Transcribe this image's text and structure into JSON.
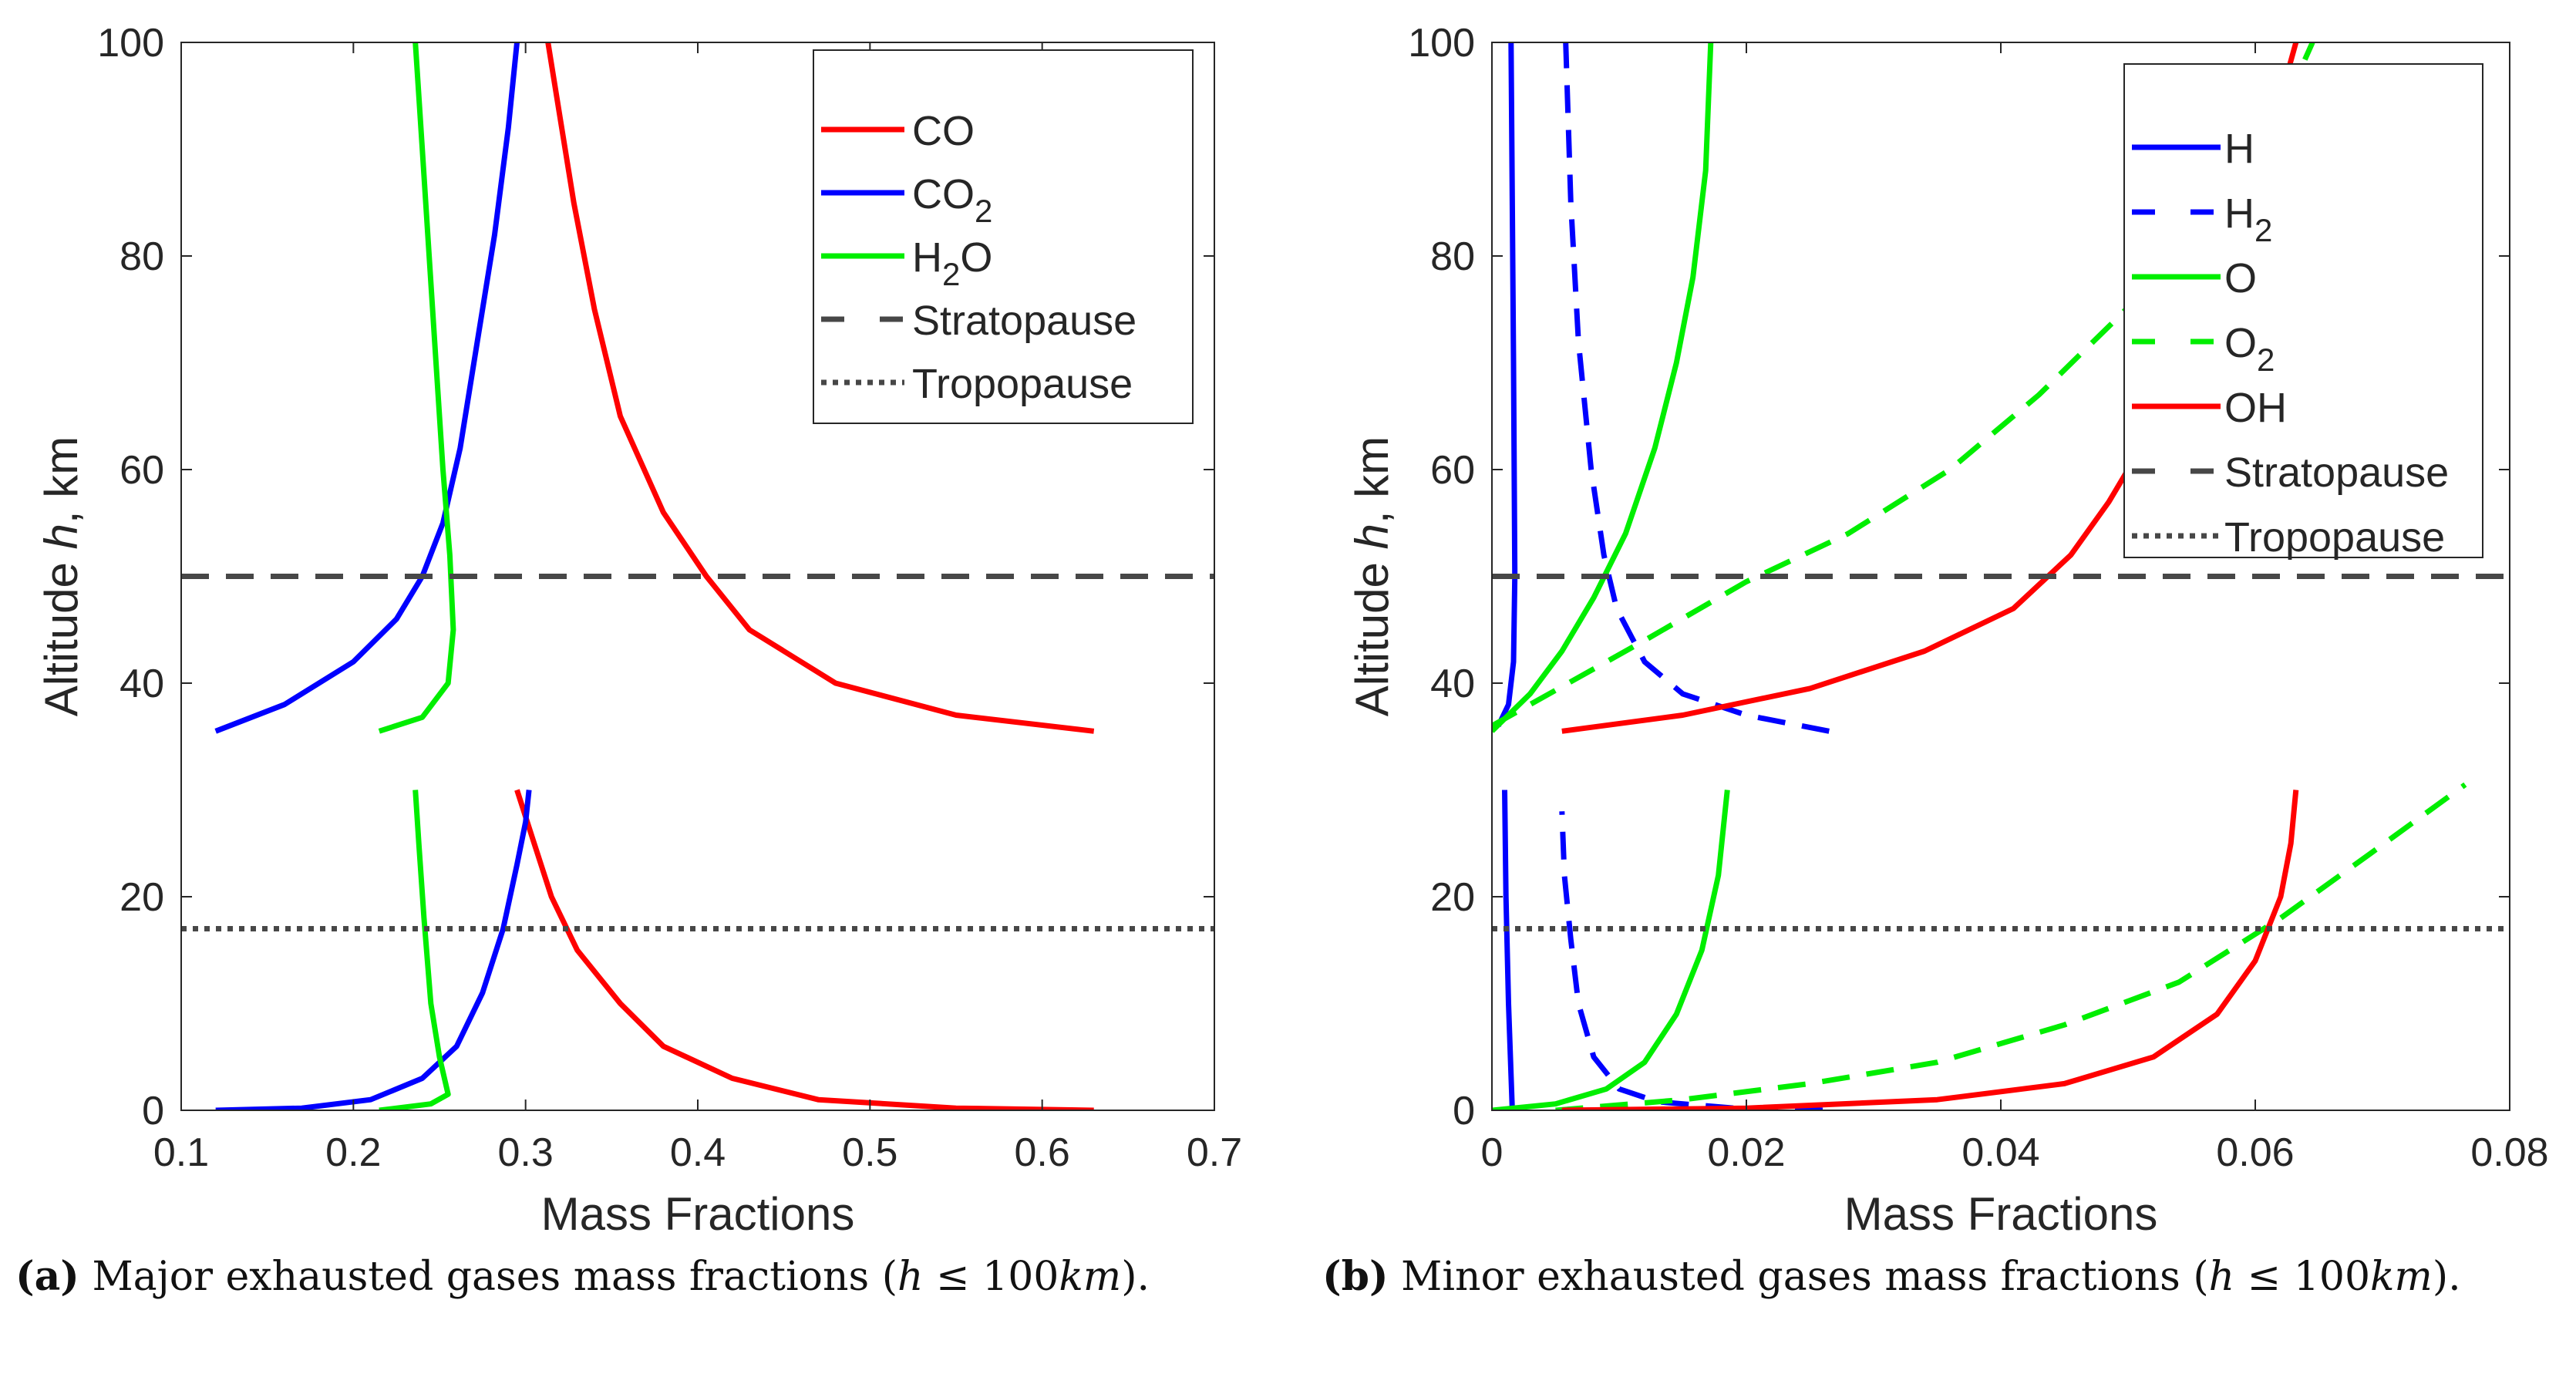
{
  "chart_data": [
    {
      "type": "line",
      "title": "",
      "xlabel": "Mass Fractions",
      "ylabel": "Altitude  h, km",
      "ylabel_italic": "h",
      "xlim": [
        0.1,
        0.7
      ],
      "ylim": [
        0,
        100
      ],
      "xticks": [
        0.1,
        0.2,
        0.3,
        0.4,
        0.5,
        0.6,
        0.7
      ],
      "xtick_labels": [
        "0.1",
        "0.2",
        "0.3",
        "0.4",
        "0.5",
        "0.6",
        "0.7"
      ],
      "yticks": [
        0,
        20,
        40,
        60,
        80,
        100
      ],
      "ytick_labels": [
        "0",
        "20",
        "40",
        "60",
        "80",
        "100"
      ],
      "legend_position": "top-right",
      "grid": false,
      "series": [
        {
          "name": "CO",
          "label_main": "CO",
          "label_sub": "",
          "label_tail": "",
          "color": "#ff0000",
          "dash": "solid",
          "segments": [
            [
              [
                0.63,
                35.5
              ],
              [
                0.55,
                37
              ],
              [
                0.48,
                40
              ],
              [
                0.43,
                45
              ],
              [
                0.405,
                50
              ],
              [
                0.38,
                56
              ],
              [
                0.355,
                65
              ],
              [
                0.34,
                75
              ],
              [
                0.328,
                85
              ],
              [
                0.32,
                93
              ],
              [
                0.313,
                100
              ]
            ],
            [
              [
                0.295,
                30
              ],
              [
                0.305,
                25
              ],
              [
                0.315,
                20
              ],
              [
                0.33,
                15
              ],
              [
                0.355,
                10
              ],
              [
                0.38,
                6
              ],
              [
                0.42,
                3
              ],
              [
                0.47,
                1
              ],
              [
                0.55,
                0.2
              ],
              [
                0.63,
                0
              ]
            ]
          ]
        },
        {
          "name": "CO2",
          "label_main": "CO",
          "label_sub": "2",
          "label_tail": "",
          "color": "#0000ff",
          "dash": "solid",
          "segments": [
            [
              [
                0.12,
                35.5
              ],
              [
                0.16,
                38
              ],
              [
                0.2,
                42
              ],
              [
                0.225,
                46
              ],
              [
                0.24,
                50
              ],
              [
                0.252,
                55
              ],
              [
                0.262,
                62
              ],
              [
                0.272,
                72
              ],
              [
                0.282,
                82
              ],
              [
                0.29,
                92
              ],
              [
                0.295,
                100
              ]
            ],
            [
              [
                0.12,
                0
              ],
              [
                0.17,
                0.2
              ],
              [
                0.21,
                1
              ],
              [
                0.24,
                3
              ],
              [
                0.26,
                6
              ],
              [
                0.275,
                11
              ],
              [
                0.287,
                17
              ],
              [
                0.295,
                23
              ],
              [
                0.3,
                27
              ],
              [
                0.302,
                30
              ]
            ]
          ]
        },
        {
          "name": "H2O",
          "label_main": "H",
          "label_sub": "2",
          "label_tail": "O",
          "color": "#00ee00",
          "dash": "solid",
          "segments": [
            [
              [
                0.215,
                35.5
              ],
              [
                0.24,
                36.8
              ],
              [
                0.255,
                40
              ],
              [
                0.258,
                45
              ],
              [
                0.256,
                52
              ],
              [
                0.252,
                60
              ],
              [
                0.248,
                70
              ],
              [
                0.244,
                80
              ],
              [
                0.24,
                90
              ],
              [
                0.236,
                100
              ]
            ],
            [
              [
                0.215,
                0
              ],
              [
                0.245,
                0.6
              ],
              [
                0.255,
                1.5
              ],
              [
                0.25,
                5
              ],
              [
                0.245,
                10
              ],
              [
                0.241,
                18
              ],
              [
                0.238,
                25
              ],
              [
                0.236,
                30
              ]
            ]
          ]
        },
        {
          "name": "Stratopause",
          "label_main": "Stratopause",
          "label_sub": "",
          "label_tail": "",
          "color": "#474747",
          "dash": "dashed",
          "segments": [
            [
              [
                0.1,
                50
              ],
              [
                0.7,
                50
              ]
            ]
          ]
        },
        {
          "name": "Tropopause",
          "label_main": "Tropopause",
          "label_sub": "",
          "label_tail": "",
          "color": "#474747",
          "dash": "dotted",
          "segments": [
            [
              [
                0.1,
                17
              ],
              [
                0.7,
                17
              ]
            ]
          ]
        }
      ]
    },
    {
      "type": "line",
      "title": "",
      "xlabel": "Mass Fractions",
      "ylabel": "Altitude  h, km",
      "ylabel_italic": "h",
      "xlim": [
        0,
        0.08
      ],
      "ylim": [
        0,
        100
      ],
      "xticks": [
        0,
        0.02,
        0.04,
        0.06,
        0.08
      ],
      "xtick_labels": [
        "0",
        "0.02",
        "0.04",
        "0.06",
        "0.08"
      ],
      "yticks": [
        0,
        20,
        40,
        60,
        80,
        100
      ],
      "ytick_labels": [
        "0",
        "20",
        "40",
        "60",
        "80",
        "100"
      ],
      "legend_position": "top-right",
      "grid": false,
      "series": [
        {
          "name": "H",
          "label_main": "H",
          "label_sub": "",
          "label_tail": "",
          "color": "#0000ff",
          "dash": "solid",
          "segments": [
            [
              [
                0.0005,
                36
              ],
              [
                0.0013,
                38
              ],
              [
                0.0017,
                42
              ],
              [
                0.0018,
                50
              ],
              [
                0.0017,
                70
              ],
              [
                0.0015,
                100
              ]
            ],
            [
              [
                0.0016,
                0
              ],
              [
                0.0013,
                10
              ],
              [
                0.0011,
                20
              ],
              [
                0.001,
                30
              ]
            ]
          ]
        },
        {
          "name": "H2",
          "label_main": "H",
          "label_sub": "2",
          "label_tail": "",
          "color": "#0000ff",
          "dash": "dashed",
          "segments": [
            [
              [
                0.0265,
                35.5
              ],
              [
                0.02,
                37
              ],
              [
                0.015,
                39
              ],
              [
                0.012,
                42
              ],
              [
                0.0098,
                47
              ],
              [
                0.0088,
                52
              ],
              [
                0.0078,
                60
              ],
              [
                0.0068,
                72
              ],
              [
                0.0062,
                85
              ],
              [
                0.0058,
                100
              ]
            ],
            [
              [
                0.026,
                0
              ],
              [
                0.019,
                0.2
              ],
              [
                0.013,
                0.8
              ],
              [
                0.01,
                2
              ],
              [
                0.008,
                5
              ],
              [
                0.0068,
                10
              ],
              [
                0.0062,
                16
              ],
              [
                0.0057,
                22
              ],
              [
                0.0055,
                28
              ]
            ]
          ]
        },
        {
          "name": "O",
          "label_main": "O",
          "label_sub": "",
          "label_tail": "",
          "color": "#00ee00",
          "dash": "solid",
          "segments": [
            [
              [
                0,
                35.5
              ],
              [
                0.003,
                39
              ],
              [
                0.0055,
                43
              ],
              [
                0.008,
                48
              ],
              [
                0.0105,
                54
              ],
              [
                0.0128,
                62
              ],
              [
                0.0145,
                70
              ],
              [
                0.0158,
                78
              ],
              [
                0.0168,
                88
              ],
              [
                0.0172,
                100
              ]
            ],
            [
              [
                0,
                0
              ],
              [
                0.005,
                0.6
              ],
              [
                0.009,
                2
              ],
              [
                0.012,
                4.5
              ],
              [
                0.0145,
                9
              ],
              [
                0.0165,
                15
              ],
              [
                0.0178,
                22
              ],
              [
                0.0185,
                30
              ]
            ]
          ]
        },
        {
          "name": "O2",
          "label_main": "O",
          "label_sub": "2",
          "label_tail": "",
          "color": "#00ee00",
          "dash": "dashed",
          "segments": [
            [
              [
                0,
                36
              ],
              [
                0.006,
                40
              ],
              [
                0.012,
                44
              ],
              [
                0.02,
                49.5
              ],
              [
                0.028,
                54
              ],
              [
                0.036,
                60
              ],
              [
                0.043,
                67
              ],
              [
                0.049,
                74
              ],
              [
                0.054,
                80
              ],
              [
                0.058,
                86
              ],
              [
                0.0615,
                92
              ],
              [
                0.0645,
                100
              ]
            ],
            [
              [
                0.005,
                0
              ],
              [
                0.015,
                1
              ],
              [
                0.025,
                2.5
              ],
              [
                0.035,
                4.5
              ],
              [
                0.045,
                8
              ],
              [
                0.054,
                12
              ],
              [
                0.062,
                18
              ],
              [
                0.069,
                24
              ],
              [
                0.0765,
                30.5
              ]
            ]
          ]
        },
        {
          "name": "OH",
          "label_main": "OH",
          "label_sub": "",
          "label_tail": "",
          "color": "#ff0000",
          "dash": "solid",
          "segments": [
            [
              [
                0.0055,
                35.5
              ],
              [
                0.015,
                37
              ],
              [
                0.025,
                39.5
              ],
              [
                0.034,
                43
              ],
              [
                0.041,
                47
              ],
              [
                0.0455,
                52
              ],
              [
                0.0485,
                57
              ],
              [
                0.0505,
                61
              ]
            ],
            [
              [
                0.0615,
                94
              ],
              [
                0.0625,
                97
              ],
              [
                0.0632,
                100
              ]
            ],
            [
              [
                0.0055,
                0
              ],
              [
                0.02,
                0.2
              ],
              [
                0.035,
                1
              ],
              [
                0.045,
                2.5
              ],
              [
                0.052,
                5
              ],
              [
                0.057,
                9
              ],
              [
                0.06,
                14
              ],
              [
                0.062,
                20
              ],
              [
                0.0628,
                25
              ],
              [
                0.0632,
                30
              ]
            ]
          ]
        },
        {
          "name": "Stratopause",
          "label_main": "Stratopause",
          "label_sub": "",
          "label_tail": "",
          "color": "#474747",
          "dash": "dashed",
          "segments": [
            [
              [
                0,
                50
              ],
              [
                0.08,
                50
              ]
            ]
          ]
        },
        {
          "name": "Tropopause",
          "label_main": "Tropopause",
          "label_sub": "",
          "label_tail": "",
          "color": "#474747",
          "dash": "dotted",
          "segments": [
            [
              [
                0,
                17
              ],
              [
                0.08,
                17
              ]
            ]
          ]
        }
      ]
    }
  ],
  "captions": [
    {
      "letter": "(a)",
      "text": "Major exhausted gases mass fractions (",
      "var": "h",
      "rel": " ≤ 100",
      "unit": "km",
      "close": ")."
    },
    {
      "letter": "(b)",
      "text": "Minor exhausted gases mass fractions (",
      "var": "h",
      "rel": " ≤ 100",
      "unit": "km",
      "close": ")."
    }
  ]
}
